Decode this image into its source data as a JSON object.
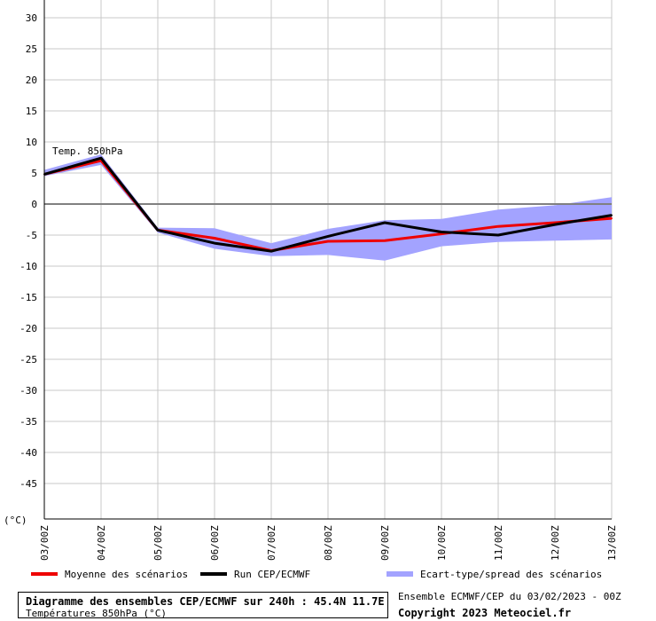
{
  "chart_data": {
    "type": "line",
    "annotation": "Temp. 850hPa",
    "unit_label": "(°C)",
    "ylim": [
      -50,
      30
    ],
    "yticks": [
      30,
      25,
      20,
      15,
      10,
      5,
      0,
      -5,
      -10,
      -15,
      -20,
      -25,
      -30,
      -35,
      -40,
      -45
    ],
    "categories": [
      "03/00Z",
      "04/00Z",
      "05/00Z",
      "06/00Z",
      "07/00Z",
      "08/00Z",
      "09/00Z",
      "10/00Z",
      "11/00Z",
      "12/00Z",
      "13/00Z"
    ],
    "grid": true,
    "legend_position": "bottom",
    "series": [
      {
        "name": "Moyenne des scénarios",
        "color": "#ee0000",
        "values": [
          4.8,
          7.0,
          -4.2,
          -5.5,
          -7.5,
          -6.0,
          -5.9,
          -4.8,
          -3.6,
          -3.0,
          -2.3
        ]
      },
      {
        "name": "Run CEP/ECMWF",
        "color": "#000000",
        "values": [
          4.8,
          7.4,
          -4.2,
          -6.3,
          -7.6,
          -5.2,
          -3.0,
          -4.5,
          -5.0,
          -3.3,
          -1.8
        ]
      }
    ],
    "band": {
      "name": "Ecart-type/spread des scénarios",
      "color": "#a3a3ff",
      "upper": [
        5.5,
        8.0,
        -3.8,
        -3.9,
        -6.3,
        -4.0,
        -2.6,
        -2.4,
        -0.9,
        -0.2,
        1.1
      ],
      "lower": [
        4.5,
        6.3,
        -4.6,
        -7.2,
        -8.4,
        -8.2,
        -9.1,
        -6.8,
        -6.1,
        -5.9,
        -5.7
      ]
    }
  },
  "legend": {
    "mean": "Moyenne des scénarios",
    "run": "Run CEP/ECMWF",
    "spread": "Ecart-type/spread des scénarios"
  },
  "footer": {
    "title": "Diagramme des ensembles CEP/ECMWF sur 240h : 45.4N 11.7E",
    "subtitle": "Températures 850hPa (°C)",
    "run_info": "Ensemble ECMWF/CEP du 03/02/2023 - 00Z",
    "copyright": "Copyright 2023 Meteociel.fr"
  },
  "colors": {
    "grid": "#c8c8c8",
    "axis": "#000000",
    "zero_line": "#808080"
  }
}
